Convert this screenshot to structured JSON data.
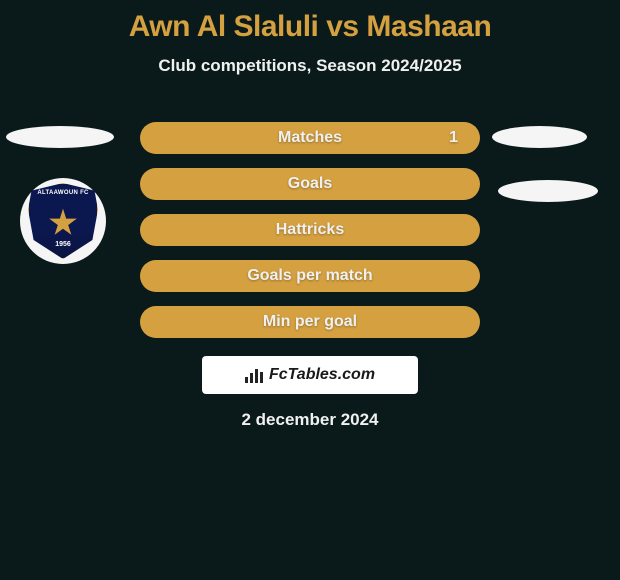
{
  "header": {
    "title": "Awn Al Slaluli vs Mashaan",
    "subtitle": "Club competitions, Season 2024/2025"
  },
  "logo": {
    "top_text": "ALTAAWOUN FC",
    "year": "1956",
    "shield_bg": "#0b1850",
    "star_color": "#d4a040",
    "badge_bg": "#f5f5f5"
  },
  "ellipses": {
    "color": "#f5f5f5"
  },
  "stats": {
    "bar_color": "#d4a040",
    "label_color": "#f0f0f0",
    "rows": [
      {
        "label": "Matches",
        "right": "1"
      },
      {
        "label": "Goals",
        "right": ""
      },
      {
        "label": "Hattricks",
        "right": ""
      },
      {
        "label": "Goals per match",
        "right": ""
      },
      {
        "label": "Min per goal",
        "right": ""
      }
    ]
  },
  "watermark": {
    "text": "FcTables.com",
    "bg": "#ffffff",
    "text_color": "#1a1a1a"
  },
  "footer": {
    "date": "2 december 2024"
  },
  "colors": {
    "page_bg": "#0a1a1a",
    "title_color": "#d4a040",
    "text_color": "#f0f0f0"
  }
}
